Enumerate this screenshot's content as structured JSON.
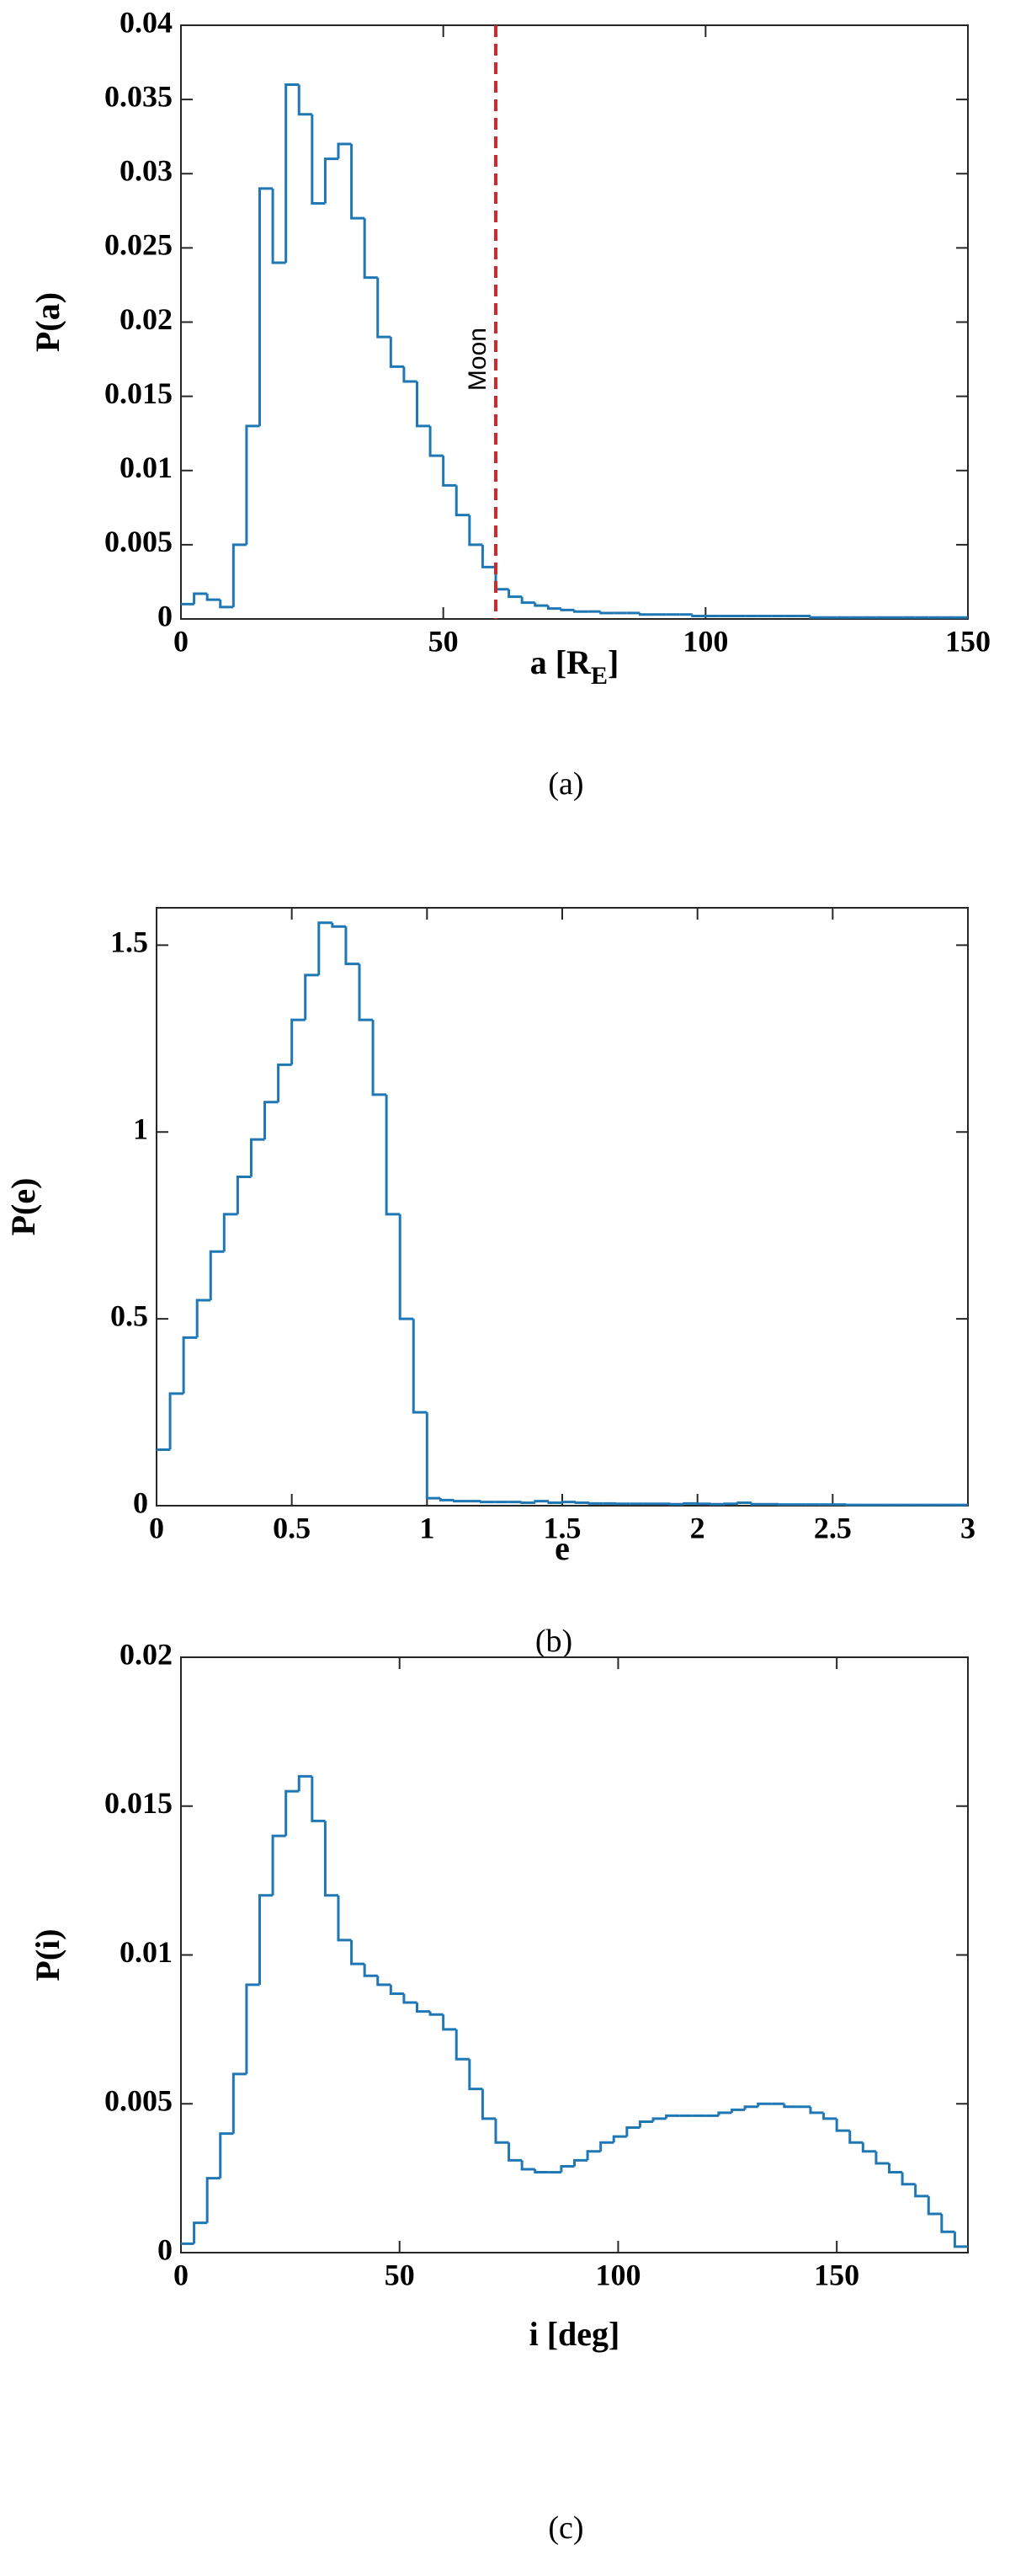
{
  "chart_data": [
    {
      "type": "histogram",
      "caption": "(a)",
      "ylabel": "P(a)",
      "xlabel": [
        "a [R",
        "E",
        "]"
      ],
      "color": "#1f77b4",
      "xlim": [
        0,
        150
      ],
      "ylim": [
        0,
        0.04
      ],
      "xticks": [
        0,
        50,
        100,
        150
      ],
      "yticks": [
        0,
        0.005,
        0.01,
        0.015,
        0.02,
        0.025,
        0.03,
        0.035,
        0.04
      ],
      "vline": {
        "x": 60,
        "label": "Moon",
        "color": "#d62728"
      },
      "bins": [
        0,
        2.5,
        5,
        7.5,
        10,
        12.5,
        15,
        17.5,
        20,
        22.5,
        25,
        27.5,
        30,
        32.5,
        35,
        37.5,
        40,
        42.5,
        45,
        47.5,
        50,
        52.5,
        55,
        57.5,
        60,
        62.5,
        65,
        67.5,
        70,
        72.5,
        75,
        77.5,
        80,
        82.5,
        85,
        87.5,
        90,
        92.5,
        95,
        97.5,
        100,
        102.5,
        105,
        107.5,
        110,
        112.5,
        115,
        117.5,
        120,
        122.5,
        125,
        127.5,
        130,
        132.5,
        135,
        137.5,
        140,
        142.5,
        145,
        147.5,
        150
      ],
      "values": [
        0.001,
        0.0017,
        0.0013,
        0.0008,
        0.005,
        0.013,
        0.029,
        0.024,
        0.036,
        0.034,
        0.028,
        0.031,
        0.032,
        0.027,
        0.023,
        0.019,
        0.017,
        0.016,
        0.013,
        0.011,
        0.009,
        0.007,
        0.005,
        0.0035,
        0.002,
        0.0015,
        0.0011,
        0.0009,
        0.0007,
        0.0006,
        0.0005,
        0.0005,
        0.0004,
        0.0004,
        0.0004,
        0.0003,
        0.0003,
        0.0003,
        0.0003,
        0.0002,
        0.0002,
        0.0002,
        0.0002,
        0.0002,
        0.0002,
        0.0002,
        0.0002,
        0.0002,
        0.0001,
        0.0001,
        0.0001,
        0.0001,
        0.0001,
        0.0001,
        0.0001,
        0.0001,
        0.0001,
        0.0001,
        0.0001,
        0.0001
      ]
    },
    {
      "type": "histogram",
      "caption": "(b)",
      "ylabel": "P(e)",
      "xlabel": [
        "e"
      ],
      "color": "#1f77b4",
      "xlim": [
        0,
        3
      ],
      "ylim": [
        0,
        1.6
      ],
      "xticks": [
        0,
        0.5,
        1,
        1.5,
        2,
        2.5,
        3
      ],
      "yticks": [
        0,
        0.5,
        1,
        1.5
      ],
      "bins": [
        0,
        0.05,
        0.1,
        0.15,
        0.2,
        0.25,
        0.3,
        0.35,
        0.4,
        0.45,
        0.5,
        0.55,
        0.6,
        0.65,
        0.7,
        0.75,
        0.8,
        0.85,
        0.9,
        0.95,
        1,
        1.05,
        1.1,
        1.15,
        1.2,
        1.25,
        1.3,
        1.35,
        1.4,
        1.45,
        1.5,
        1.55,
        1.6,
        1.65,
        1.7,
        1.75,
        1.8,
        1.85,
        1.9,
        1.95,
        2,
        2.05,
        2.1,
        2.15,
        2.2,
        2.25,
        2.3,
        2.35,
        2.4,
        2.45,
        2.5,
        2.55,
        2.6,
        2.65,
        2.7,
        2.75,
        2.8,
        2.85,
        2.9,
        2.95,
        3
      ],
      "values": [
        0.15,
        0.3,
        0.45,
        0.55,
        0.68,
        0.78,
        0.88,
        0.98,
        1.08,
        1.18,
        1.3,
        1.42,
        1.56,
        1.55,
        1.45,
        1.3,
        1.1,
        0.78,
        0.5,
        0.25,
        0.02,
        0.015,
        0.012,
        0.012,
        0.01,
        0.01,
        0.01,
        0.008,
        0.012,
        0.008,
        0.01,
        0.008,
        0.006,
        0.006,
        0.005,
        0.005,
        0.005,
        0.005,
        0.004,
        0.006,
        0.005,
        0.004,
        0.005,
        0.008,
        0.004,
        0.004,
        0.003,
        0.003,
        0.003,
        0.003,
        0.003,
        0.002,
        0.002,
        0.002,
        0.002,
        0.002,
        0.002,
        0.002,
        0.002,
        0.002
      ]
    },
    {
      "type": "histogram",
      "caption": "(c)",
      "ylabel": "P(i)",
      "xlabel": [
        "i [deg]"
      ],
      "color": "#1f77b4",
      "xlim": [
        0,
        180
      ],
      "ylim": [
        0,
        0.02
      ],
      "xticks": [
        0,
        50,
        100,
        150
      ],
      "yticks": [
        0,
        0.005,
        0.01,
        0.015,
        0.02
      ],
      "bins": [
        0,
        3,
        6,
        9,
        12,
        15,
        18,
        21,
        24,
        27,
        30,
        33,
        36,
        39,
        42,
        45,
        48,
        51,
        54,
        57,
        60,
        63,
        66,
        69,
        72,
        75,
        78,
        81,
        84,
        87,
        90,
        93,
        96,
        99,
        102,
        105,
        108,
        111,
        114,
        117,
        120,
        123,
        126,
        129,
        132,
        135,
        138,
        141,
        144,
        147,
        150,
        153,
        156,
        159,
        162,
        165,
        168,
        171,
        174,
        177,
        180
      ],
      "values": [
        0.0003,
        0.001,
        0.0025,
        0.004,
        0.006,
        0.009,
        0.012,
        0.014,
        0.0155,
        0.016,
        0.0145,
        0.012,
        0.0105,
        0.0097,
        0.0093,
        0.009,
        0.0087,
        0.0084,
        0.0081,
        0.008,
        0.0075,
        0.0065,
        0.0055,
        0.0045,
        0.0037,
        0.0031,
        0.0028,
        0.0027,
        0.0027,
        0.0029,
        0.0031,
        0.0034,
        0.0037,
        0.0039,
        0.0042,
        0.0044,
        0.0045,
        0.0046,
        0.0046,
        0.0046,
        0.0046,
        0.0047,
        0.0048,
        0.0049,
        0.005,
        0.005,
        0.0049,
        0.0049,
        0.0047,
        0.0045,
        0.0041,
        0.0037,
        0.0034,
        0.003,
        0.0027,
        0.0023,
        0.0019,
        0.0013,
        0.0007,
        0.0002
      ]
    }
  ]
}
